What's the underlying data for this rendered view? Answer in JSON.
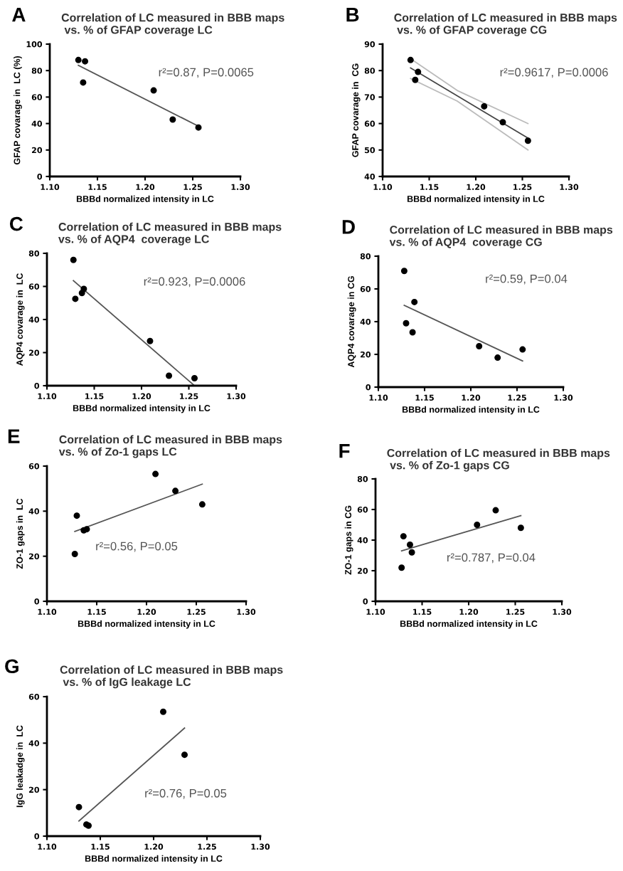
{
  "chart_data": [
    {
      "type": "scatter",
      "title": "Correlation of LC measured in BBB maps\n vs. % of GFAP coverage LC",
      "xlabel": "BBBd normalized intensity in LC",
      "ylabel": "GFAP covarage in  LC (%)",
      "xlim": [
        1.1,
        1.3
      ],
      "xticks": [
        {
          "value": 1.1,
          "label": "1.10"
        },
        {
          "value": 1.15,
          "label": "1.15"
        },
        {
          "value": 1.2,
          "label": "1.20"
        },
        {
          "value": 1.25,
          "label": "1.25"
        },
        {
          "value": 1.3,
          "label": "1.30"
        }
      ],
      "ylim": [
        0,
        100
      ],
      "yticks": [
        0,
        20,
        40,
        60,
        80,
        100
      ],
      "annotations": [
        "A",
        "r²=0.87, P=0.0065"
      ],
      "series": [
        {
          "marker": "circle",
          "color": "#000000",
          "x": [
            1.13,
            1.137,
            1.135,
            1.209,
            1.229,
            1.256
          ],
          "values": [
            88,
            87,
            71,
            65,
            43,
            37
          ]
        },
        {
          "type": "line",
          "marker": "none",
          "color": "#555555",
          "x": [
            1.13,
            1.256
          ],
          "values": [
            84,
            38
          ]
        }
      ]
    },
    {
      "type": "scatter",
      "title": "Correlation of LC measured in BBB maps\n vs. % of GFAP coverage CG",
      "xlabel": "BBBd normalized intensity in LC",
      "ylabel": "GFAP covarage in  CG",
      "xlim": [
        1.1,
        1.3
      ],
      "xticks": [
        {
          "value": 1.1,
          "label": "1.10"
        },
        {
          "value": 1.15,
          "label": "1.15"
        },
        {
          "value": 1.2,
          "label": "1.20"
        },
        {
          "value": 1.25,
          "label": "1.25"
        },
        {
          "value": 1.3,
          "label": "1.30"
        }
      ],
      "ylim": [
        40,
        90
      ],
      "yticks": [
        40,
        50,
        60,
        70,
        80,
        90
      ],
      "annotations": [
        "B",
        "r²=0.9617, P=0.0006"
      ],
      "series": [
        {
          "marker": "circle",
          "color": "#000000",
          "x": [
            1.13,
            1.138,
            1.135,
            1.209,
            1.229,
            1.256
          ],
          "values": [
            84,
            79.5,
            76.5,
            66.5,
            60.5,
            53.5
          ]
        },
        {
          "type": "line",
          "marker": "none",
          "color": "#bbbbbb",
          "x": [
            1.13,
            1.18,
            1.256
          ],
          "values": [
            84.5,
            72.5,
            60
          ]
        },
        {
          "type": "line",
          "marker": "none",
          "color": "#bbbbbb",
          "x": [
            1.13,
            1.18,
            1.256
          ],
          "values": [
            77,
            68.5,
            50
          ]
        },
        {
          "type": "line",
          "marker": "none",
          "color": "#444444",
          "x": [
            1.13,
            1.256
          ],
          "values": [
            81,
            54.5
          ]
        }
      ]
    },
    {
      "type": "scatter",
      "title": "Correlation of LC measured in BBB maps\nvs. % of AQP4  coverage LC",
      "xlabel": "BBBd normalized intensity in LC",
      "ylabel": "AQP4 covarage in  LC",
      "xlim": [
        1.1,
        1.3
      ],
      "xticks": [
        {
          "value": 1.1,
          "label": "1.10"
        },
        {
          "value": 1.15,
          "label": "1.15"
        },
        {
          "value": 1.2,
          "label": "1.20"
        },
        {
          "value": 1.25,
          "label": "1.25"
        },
        {
          "value": 1.3,
          "label": "1.30"
        }
      ],
      "ylim": [
        0,
        80
      ],
      "yticks": [
        0,
        20,
        40,
        60,
        80
      ],
      "annotations": [
        "C",
        "r²=0.923, P=0.0006"
      ],
      "series": [
        {
          "marker": "circle",
          "color": "#000000",
          "x": [
            1.128,
            1.13,
            1.137,
            1.139,
            1.209,
            1.229,
            1.256
          ],
          "values": [
            76,
            52.5,
            56,
            58.5,
            27,
            6,
            4.5
          ]
        },
        {
          "type": "line",
          "marker": "none",
          "color": "#555555",
          "x": [
            1.128,
            1.255
          ],
          "values": [
            63.5,
            0.5
          ]
        }
      ]
    },
    {
      "type": "scatter",
      "title": "Correlation of LC measured in BBB maps\nvs. % of AQP4  coverage CG",
      "xlabel": "BBBd normalized intensity in LC",
      "ylabel": "AQP4 covarage in CG",
      "xlim": [
        1.1,
        1.3
      ],
      "xticks": [
        {
          "value": 1.1,
          "label": "1.10"
        },
        {
          "value": 1.15,
          "label": "1.15"
        },
        {
          "value": 1.2,
          "label": "1.20"
        },
        {
          "value": 1.25,
          "label": "1.25"
        },
        {
          "value": 1.3,
          "label": "1.30"
        }
      ],
      "ylim": [
        0,
        80
      ],
      "yticks": [
        0,
        20,
        40,
        60,
        80
      ],
      "annotations": [
        "D",
        "r²=0.59, P=0.04"
      ],
      "series": [
        {
          "marker": "circle",
          "color": "#000000",
          "x": [
            1.128,
            1.13,
            1.137,
            1.139,
            1.209,
            1.229,
            1.256
          ],
          "values": [
            71,
            39,
            33.5,
            52,
            25,
            18,
            23
          ]
        },
        {
          "type": "line",
          "marker": "none",
          "color": "#555555",
          "x": [
            1.128,
            1.256
          ],
          "values": [
            50,
            16
          ]
        }
      ]
    },
    {
      "type": "scatter",
      "title": "Correlation of LC measured in BBB maps\nvs. % of Zo-1 gaps LC",
      "xlabel": "BBBd normalized intensity in LC",
      "ylabel": "ZO-1 gaps in  LC",
      "xlim": [
        1.1,
        1.3
      ],
      "xticks": [
        {
          "value": 1.1,
          "label": "1.10"
        },
        {
          "value": 1.15,
          "label": "1.15"
        },
        {
          "value": 1.2,
          "label": "1.20"
        },
        {
          "value": 1.25,
          "label": "1.25"
        },
        {
          "value": 1.3,
          "label": "1.30"
        }
      ],
      "ylim": [
        0,
        60
      ],
      "yticks": [
        0,
        20,
        40,
        60
      ],
      "annotations": [
        "E",
        "r²=0.56, P=0.05"
      ],
      "series": [
        {
          "marker": "circle",
          "color": "#000000",
          "x": [
            1.128,
            1.13,
            1.137,
            1.14,
            1.209,
            1.229,
            1.256
          ],
          "values": [
            21,
            38,
            31.5,
            32,
            56.5,
            49,
            43
          ]
        },
        {
          "type": "line",
          "marker": "none",
          "color": "#555555",
          "x": [
            1.128,
            1.256
          ],
          "values": [
            31,
            52
          ]
        }
      ]
    },
    {
      "type": "scatter",
      "title": "Correlation of LC measured in BBB maps\n vs. % of Zo-1 gaps CG",
      "xlabel": "BBBd normalized intensity in LC",
      "ylabel": "ZO-1 gaps in CG",
      "xlim": [
        1.1,
        1.3
      ],
      "xticks": [
        {
          "value": 1.1,
          "label": "1.10"
        },
        {
          "value": 1.15,
          "label": "1.15"
        },
        {
          "value": 1.2,
          "label": "1.20"
        },
        {
          "value": 1.25,
          "label": "1.25"
        },
        {
          "value": 1.3,
          "label": "1.30"
        }
      ],
      "ylim": [
        0,
        80
      ],
      "yticks": [
        0,
        20,
        40,
        60,
        80
      ],
      "annotations": [
        "F",
        "r²=0.787, P=0.04"
      ],
      "series": [
        {
          "marker": "circle",
          "color": "#000000",
          "x": [
            1.128,
            1.13,
            1.137,
            1.139,
            1.209,
            1.229,
            1.256
          ],
          "values": [
            22,
            42.5,
            37,
            32,
            50,
            59.5,
            48
          ]
        },
        {
          "type": "line",
          "marker": "none",
          "color": "#555555",
          "x": [
            1.128,
            1.256
          ],
          "values": [
            33,
            56
          ]
        }
      ]
    },
    {
      "type": "scatter",
      "title": "Correlation of LC measured in BBB maps\n vs. % of IgG leakage LC",
      "xlabel": "BBBd normalized intensity in LC",
      "ylabel": "IgG leakadge in  LC",
      "xlim": [
        1.1,
        1.3
      ],
      "xticks": [
        {
          "value": 1.1,
          "label": "1.10"
        },
        {
          "value": 1.15,
          "label": "1.15"
        },
        {
          "value": 1.2,
          "label": "1.20"
        },
        {
          "value": 1.25,
          "label": "1.25"
        },
        {
          "value": 1.3,
          "label": "1.30"
        }
      ],
      "ylim": [
        0,
        60
      ],
      "yticks": [
        0,
        20,
        40,
        60
      ],
      "annotations": [
        "G",
        "r²=0.76, P=0.05"
      ],
      "series": [
        {
          "marker": "circle",
          "color": "#000000",
          "x": [
            1.13,
            1.137,
            1.139,
            1.209,
            1.229
          ],
          "values": [
            12.5,
            5,
            4.5,
            53.5,
            35
          ]
        },
        {
          "type": "line",
          "marker": "none",
          "color": "#555555",
          "x": [
            1.13,
            1.229
          ],
          "values": [
            6.5,
            46.5
          ]
        }
      ]
    }
  ]
}
